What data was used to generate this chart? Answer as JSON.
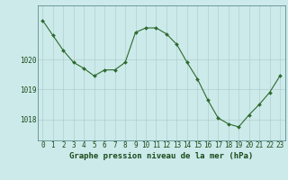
{
  "x": [
    0,
    1,
    2,
    3,
    4,
    5,
    6,
    7,
    8,
    9,
    10,
    11,
    12,
    13,
    14,
    15,
    16,
    17,
    18,
    19,
    20,
    21,
    22,
    23
  ],
  "y": [
    1021.3,
    1020.8,
    1020.3,
    1019.9,
    1019.7,
    1019.45,
    1019.65,
    1019.65,
    1019.9,
    1020.9,
    1021.05,
    1021.05,
    1020.85,
    1020.5,
    1019.9,
    1019.35,
    1018.65,
    1018.05,
    1017.85,
    1017.75,
    1018.15,
    1018.5,
    1018.9,
    1019.45
  ],
  "line_color": "#2d6a2d",
  "marker": "D",
  "marker_size": 2.0,
  "bg_color": "#cceaea",
  "grid_color": "#aac8c8",
  "xlabel": "Graphe pression niveau de la mer (hPa)",
  "xlabel_color": "#1a4a1a",
  "xlabel_fontsize": 6.5,
  "tick_color": "#1a4a1a",
  "tick_fontsize": 5.5,
  "ylim": [
    1017.3,
    1021.8
  ],
  "yticks": [
    1018,
    1019,
    1020
  ],
  "xlim": [
    -0.5,
    23.5
  ],
  "xticks": [
    0,
    1,
    2,
    3,
    4,
    5,
    6,
    7,
    8,
    9,
    10,
    11,
    12,
    13,
    14,
    15,
    16,
    17,
    18,
    19,
    20,
    21,
    22,
    23
  ]
}
